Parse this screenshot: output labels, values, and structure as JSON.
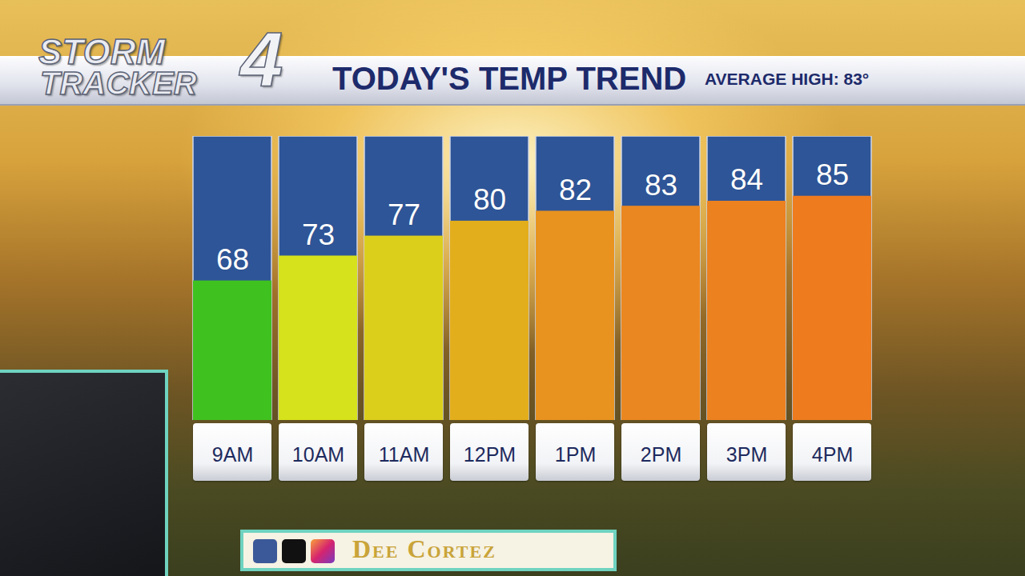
{
  "chart_data": {
    "type": "bar",
    "title": "TODAY'S TEMP TREND",
    "subtitle": "AVERAGE HIGH: 83°",
    "annotations": [
      "STORM",
      "TRACKER",
      "4",
      "Dee Cortez"
    ],
    "categories": [
      "9AM",
      "10AM",
      "11AM",
      "12PM",
      "1PM",
      "2PM",
      "3PM",
      "4PM"
    ],
    "values": [
      68,
      73,
      77,
      80,
      82,
      83,
      84,
      85
    ],
    "colors": [
      "#3fc21f",
      "#d6e21b",
      "#dccf1c",
      "#e3ae1c",
      "#e8931f",
      "#eb8720",
      "#ec8120",
      "#ee7b1e"
    ],
    "ylim": [
      40,
      97
    ],
    "yticks": [],
    "data_labels": true,
    "tick_labels": "x"
  }
}
